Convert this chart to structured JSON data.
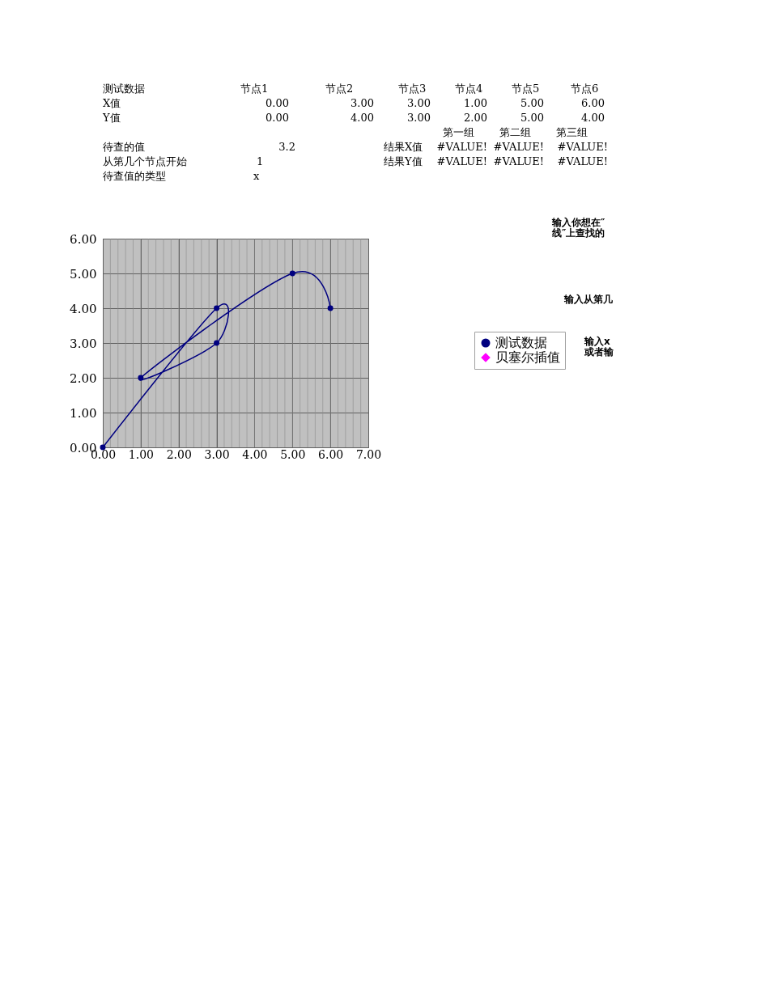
{
  "chart_data": [
    {
      "type": "other",
      "annotations": [
        "测试数据",
        "节点1",
        "节点2",
        "节点3",
        "节点4",
        "节点5",
        "节点6",
        "X值",
        "0.00",
        "3.00",
        "3.00",
        "1.00",
        "5.00",
        "6.00",
        "Y值",
        "0.00",
        "4.00",
        "3.00",
        "2.00",
        "5.00",
        "4.00",
        "第一组",
        "第二组",
        "第三组",
        "待查的值",
        "3.2",
        "结果X值",
        "#VALUE!",
        "#VALUE!",
        "#VALUE!",
        "从第几个节点开始",
        "1",
        "结果Y值",
        "#VALUE!",
        "#VALUE!",
        "#VALUE!",
        "待查值的类型",
        "x"
      ]
    },
    {
      "type": "line",
      "x": [
        0,
        3,
        3,
        1,
        5,
        6
      ],
      "series": [
        {
          "name": "测试数据",
          "color": "#000080",
          "values": [
            0,
            4,
            3,
            2,
            5,
            4
          ],
          "marker": "circle"
        },
        {
          "name": "贝塞尔插值",
          "color": "#ff00ff",
          "marker": "diamond",
          "values": [
            null,
            null,
            null,
            null,
            null,
            null
          ]
        }
      ],
      "xlim": [
        0,
        7
      ],
      "ylim": [
        0,
        6
      ],
      "xticks": [
        {
          "value": 0,
          "label": "0.00"
        },
        {
          "value": 1,
          "label": "1.00"
        },
        {
          "value": 2,
          "label": "2.00"
        },
        {
          "value": 3,
          "label": "3.00"
        },
        {
          "value": 4,
          "label": "4.00"
        },
        {
          "value": 5,
          "label": "5.00"
        },
        {
          "value": 6,
          "label": "6.00"
        },
        {
          "value": 7,
          "label": "7.00"
        }
      ],
      "yticks": [
        {
          "value": 0,
          "label": "0.00"
        },
        {
          "value": 1,
          "label": "1.00"
        },
        {
          "value": 2,
          "label": "2.00"
        },
        {
          "value": 3,
          "label": "3.00"
        },
        {
          "value": 4,
          "label": "4.00"
        },
        {
          "value": 5,
          "label": "5.00"
        },
        {
          "value": 6,
          "label": "6.00"
        }
      ],
      "grid": true,
      "legend": "right",
      "line_style": "solid",
      "annotations": [
        "输入你想在″\n线″上查找的",
        "输入从第几",
        "输入x\n或者输"
      ]
    }
  ]
}
